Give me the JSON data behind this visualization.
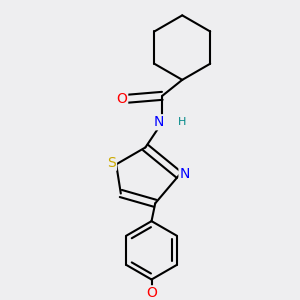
{
  "background_color": "#eeeef0",
  "bond_color": "#000000",
  "bond_width": 1.5,
  "atoms": {
    "O": "#ff0000",
    "N": "#0000ff",
    "S": "#ccaa00",
    "H": "#008888"
  },
  "font_size_atoms": 10,
  "font_size_H": 8,
  "figsize": [
    3.0,
    3.0
  ],
  "dpi": 100
}
